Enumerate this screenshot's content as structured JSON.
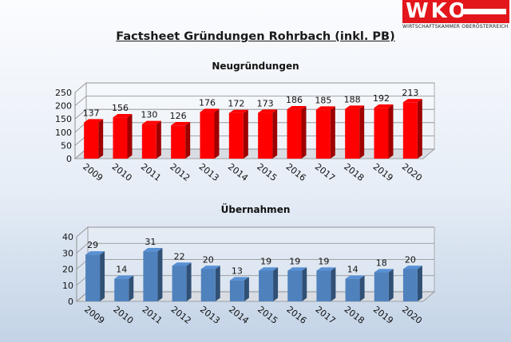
{
  "page": {
    "title": "Factsheet Gründungen Rohrbach (inkl. PB)"
  },
  "logo": {
    "letters": "WKO",
    "subtitle": "WIRTSCHAFTSKAMMER OBERÖSTERREICH"
  },
  "colors": {
    "brand_red": "#e3161b",
    "bar_red": "#ff0000",
    "bar_blue": "#4f81bd"
  },
  "chart_data": [
    {
      "type": "bar",
      "title": "Neugründungen",
      "categories": [
        "2009",
        "2010",
        "2011",
        "2012",
        "2013",
        "2014",
        "2015",
        "2016",
        "2017",
        "2018",
        "2019",
        "2020"
      ],
      "values": [
        137,
        156,
        130,
        126,
        176,
        172,
        173,
        186,
        185,
        188,
        192,
        213
      ],
      "ylim": [
        0,
        250
      ],
      "yticks": [
        0,
        50,
        100,
        150,
        200,
        250
      ],
      "ytick_labels": [
        "0",
        "50",
        "100",
        "150",
        "200",
        "250"
      ],
      "grid": true,
      "style": "3d",
      "color": "#ff0000"
    },
    {
      "type": "bar",
      "title": "Übernahmen",
      "categories": [
        "2009",
        "2010",
        "2011",
        "2012",
        "2013",
        "2014",
        "2015",
        "2016",
        "2017",
        "2018",
        "2019",
        "2020"
      ],
      "values": [
        29,
        14,
        31,
        22,
        20,
        13,
        19,
        19,
        19,
        14,
        18,
        20
      ],
      "ylim": [
        0,
        40
      ],
      "yticks": [
        0,
        10,
        20,
        30,
        40
      ],
      "ytick_labels": [
        "0",
        "10",
        "20",
        "30",
        "40"
      ],
      "grid": true,
      "style": "3d",
      "color": "#4f81bd"
    }
  ]
}
